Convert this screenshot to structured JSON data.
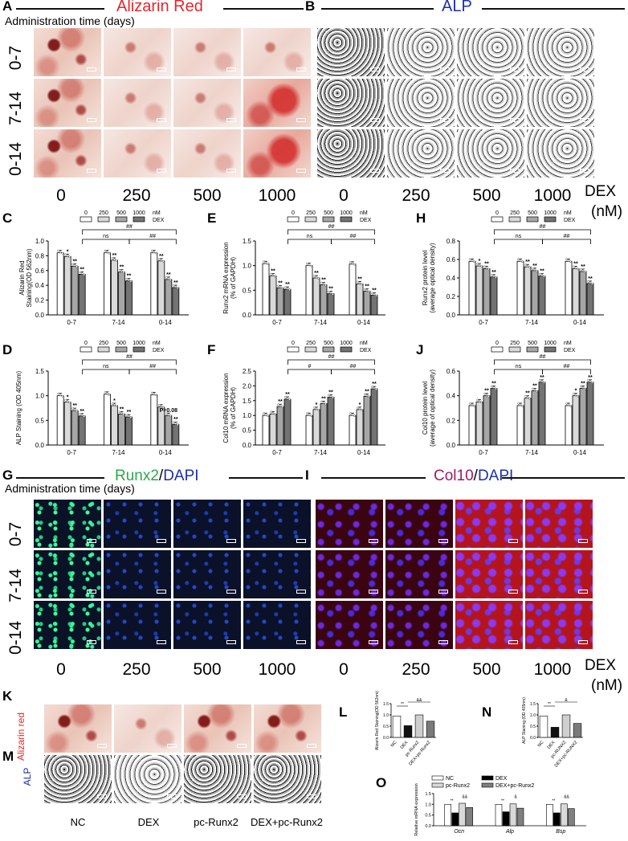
{
  "panels": {
    "A": {
      "label": "A",
      "title": "Alizarin Red",
      "subtitle": "Administration time (days)",
      "rows": [
        "0-7",
        "7-14",
        "0-14"
      ]
    },
    "B": {
      "label": "B",
      "title": "ALP"
    },
    "doses": [
      "0",
      "250",
      "500",
      "1000"
    ],
    "dex_unit": [
      "DEX",
      "(nM)"
    ],
    "G": {
      "label": "G",
      "title_a": "Runx2",
      "title_sep": "/",
      "title_b": "DAPI",
      "subtitle": "Administration time (days)",
      "rows": [
        "0-7",
        "7-14",
        "0-14"
      ]
    },
    "I": {
      "label": "I",
      "title_a": "Col10",
      "title_sep": "/",
      "title_b": "DAPI"
    },
    "K": {
      "label": "K",
      "row_label": "Alizarin red"
    },
    "M": {
      "label": "M",
      "row_label": "ALP"
    },
    "KM_groups": [
      "NC",
      "DEX",
      "pc-Runx2",
      "DEX+pc-Runx2"
    ],
    "colors": {
      "red_title": "#e8262b",
      "blue_title": "#1c2fa8",
      "green_title": "#2aa84a",
      "purple_title": "#9c1a6a"
    }
  },
  "chart_data": [
    {
      "id": "C",
      "type": "bar",
      "ylabel": "Alizarin Red Staining(OD 562nm)",
      "ylim": [
        0,
        1.0
      ],
      "yticks": [
        "0.0",
        "0.2",
        "0.4",
        "0.6",
        "0.8",
        "1.0"
      ],
      "categories": [
        "0-7",
        "7-14",
        "0-14"
      ],
      "series": [
        {
          "name": "0",
          "values": [
            0.84,
            0.84,
            0.84
          ]
        },
        {
          "name": "250",
          "values": [
            0.79,
            0.74,
            0.73
          ]
        },
        {
          "name": "500",
          "values": [
            0.66,
            0.58,
            0.48
          ]
        },
        {
          "name": "1000",
          "values": [
            0.55,
            0.46,
            0.37
          ]
        }
      ],
      "legend": [
        "0",
        "250",
        "500",
        "1000"
      ],
      "legend_unit": "nM",
      "legend_sub": "DEX",
      "sig": [
        "ns",
        "##"
      ],
      "stars": [
        [
          "",
          "*",
          "**",
          "**"
        ],
        [
          "",
          "**",
          "**",
          "**"
        ],
        [
          "",
          "**",
          "**",
          "**"
        ]
      ]
    },
    {
      "id": "D",
      "type": "bar",
      "ylabel": "ALP Staining (OD 405nm)",
      "ylim": [
        0,
        1.5
      ],
      "yticks": [
        "0.0",
        "0.5",
        "1.0",
        "1.5"
      ],
      "categories": [
        "0-7",
        "7-14",
        "0-14"
      ],
      "series": [
        {
          "name": "0",
          "values": [
            1.0,
            1.03,
            1.02
          ]
        },
        {
          "name": "250",
          "values": [
            0.87,
            0.8,
            0.77
          ]
        },
        {
          "name": "500",
          "values": [
            0.7,
            0.63,
            0.6
          ]
        },
        {
          "name": "1000",
          "values": [
            0.59,
            0.57,
            0.42
          ]
        }
      ],
      "legend": [
        "0",
        "250",
        "500",
        "1000"
      ],
      "legend_unit": "nM",
      "legend_sub": "DEX",
      "sig": [
        "ns",
        "##"
      ],
      "stars": [
        [
          "",
          "*",
          "**",
          "**"
        ],
        [
          "",
          "*",
          "**",
          "**"
        ],
        [
          "",
          "",
          "P=0.08",
          "**"
        ]
      ]
    },
    {
      "id": "E",
      "type": "bar",
      "ylabel": "Runx2 mRNA expression (% of GAPDH)",
      "ylim": [
        0,
        1.5
      ],
      "yticks": [
        "0.0",
        "0.5",
        "1.0",
        "1.5"
      ],
      "categories": [
        "0-7",
        "7-14",
        "0-14"
      ],
      "series": [
        {
          "name": "0",
          "values": [
            1.04,
            1.0,
            1.03
          ]
        },
        {
          "name": "250",
          "values": [
            0.79,
            0.75,
            0.63
          ]
        },
        {
          "name": "500",
          "values": [
            0.55,
            0.61,
            0.48
          ]
        },
        {
          "name": "1000",
          "values": [
            0.52,
            0.43,
            0.4
          ]
        }
      ],
      "legend": [
        "0",
        "250",
        "500",
        "1000"
      ],
      "legend_unit": "nM",
      "legend_sub": "DEX",
      "sig": [
        "ns",
        "##"
      ],
      "stars": [
        [
          "",
          "**",
          "**",
          "**"
        ],
        [
          "",
          "**",
          "**",
          "**"
        ],
        [
          "",
          "**",
          "**",
          "**"
        ]
      ]
    },
    {
      "id": "F",
      "type": "bar",
      "ylabel": "Col10 mRNA expression (% of GAPDH)",
      "ylim": [
        0,
        2.5
      ],
      "yticks": [
        "0.0",
        "0.5",
        "1.0",
        "1.5",
        "2.0",
        "2.5"
      ],
      "categories": [
        "0-7",
        "7-14",
        "0-14"
      ],
      "series": [
        {
          "name": "0",
          "values": [
            1.0,
            1.0,
            1.0
          ]
        },
        {
          "name": "250",
          "values": [
            1.05,
            1.2,
            1.2
          ]
        },
        {
          "name": "500",
          "values": [
            1.3,
            1.4,
            1.65
          ]
        },
        {
          "name": "1000",
          "values": [
            1.55,
            1.62,
            1.9
          ]
        }
      ],
      "legend": [
        "0",
        "250",
        "500",
        "1000"
      ],
      "legend_unit": "nM",
      "legend_sub": "DEX",
      "sig": [
        "#",
        "##"
      ],
      "stars": [
        [
          "",
          "",
          "**",
          "**"
        ],
        [
          "",
          "*",
          "**",
          "**"
        ],
        [
          "",
          "*",
          "**",
          "**"
        ]
      ]
    },
    {
      "id": "H",
      "type": "bar",
      "ylabel": "Runx2 protein level (average optical density)",
      "ylim": [
        0,
        0.8
      ],
      "yticks": [
        "0.0",
        "0.2",
        "0.4",
        "0.6",
        "0.8"
      ],
      "categories": [
        "0-7",
        "7-14",
        "0-14"
      ],
      "series": [
        {
          "name": "0",
          "values": [
            0.58,
            0.58,
            0.58
          ]
        },
        {
          "name": "250",
          "values": [
            0.53,
            0.52,
            0.5
          ]
        },
        {
          "name": "500",
          "values": [
            0.5,
            0.48,
            0.47
          ]
        },
        {
          "name": "1000",
          "values": [
            0.41,
            0.42,
            0.34
          ]
        }
      ],
      "legend": [
        "0",
        "250",
        "500",
        "1000"
      ],
      "legend_unit": "nM",
      "legend_sub": "DEX",
      "sig": [
        "ns",
        "##"
      ],
      "stars": [
        [
          "",
          "*",
          "**",
          "**"
        ],
        [
          "",
          "**",
          "**",
          "**"
        ],
        [
          "",
          "**",
          "**",
          "**"
        ]
      ]
    },
    {
      "id": "J",
      "type": "bar",
      "ylabel": "Col10 protein level (average of optical density)",
      "ylim": [
        0,
        0.6
      ],
      "yticks": [
        "0.0",
        "0.2",
        "0.4",
        "0.6"
      ],
      "categories": [
        "0-7",
        "7-14",
        "0-14"
      ],
      "series": [
        {
          "name": "0",
          "values": [
            0.32,
            0.32,
            0.32
          ]
        },
        {
          "name": "250",
          "values": [
            0.35,
            0.38,
            0.4
          ]
        },
        {
          "name": "500",
          "values": [
            0.4,
            0.44,
            0.46
          ]
        },
        {
          "name": "1000",
          "values": [
            0.46,
            0.51,
            0.51
          ]
        }
      ],
      "legend": [
        "0",
        "250",
        "500",
        "1000"
      ],
      "legend_unit": "nM",
      "legend_sub": "DEX",
      "sig": [
        "ns",
        "##"
      ],
      "stars": [
        [
          "",
          "",
          "**",
          "**"
        ],
        [
          "",
          "**",
          "**",
          "**"
        ],
        [
          "",
          "*",
          "**",
          "**"
        ]
      ]
    },
    {
      "id": "L",
      "type": "bar",
      "ylabel": "Alizarin Red Staining(OD 562nm)",
      "ylim": [
        0,
        1.5
      ],
      "yticks": [
        "0.0",
        "0.5",
        "1.0",
        "1.5"
      ],
      "categories": [
        "NC",
        "DEX",
        "pc-Runx2",
        "DEX+pc-Runx2"
      ],
      "values": [
        0.95,
        0.52,
        1.0,
        0.72
      ],
      "sig": [
        "**",
        "&&"
      ]
    },
    {
      "id": "N",
      "type": "bar",
      "ylabel": "ALP Staining (OD 405nm)",
      "ylim": [
        0,
        1.5
      ],
      "yticks": [
        "0.0",
        "0.5",
        "1.0",
        "1.5"
      ],
      "categories": [
        "NC",
        "DEX",
        "pc-RUNX2",
        "DEX+pc-RUNX2"
      ],
      "values": [
        0.95,
        0.45,
        1.0,
        0.62
      ],
      "sig": [
        "**",
        "&"
      ]
    },
    {
      "id": "O",
      "type": "bar",
      "ylabel": "Relative mRNA expression",
      "ylim": [
        0,
        1.5
      ],
      "yticks": [
        "0.0",
        "0.5",
        "1.0",
        "1.5"
      ],
      "categories": [
        "Ocn",
        "Alp",
        "Bsp"
      ],
      "series": [
        {
          "name": "NC",
          "values": [
            1.0,
            1.0,
            1.0
          ]
        },
        {
          "name": "DEX",
          "values": [
            0.6,
            0.65,
            0.6
          ]
        },
        {
          "name": "pc-Runx2",
          "values": [
            1.05,
            1.02,
            1.02
          ]
        },
        {
          "name": "DEX+pc-Runx2",
          "values": [
            0.85,
            0.82,
            0.8
          ]
        }
      ],
      "legend": [
        "NC",
        "DEX",
        "pc-Runx2",
        "DEX+pc-Runx2"
      ],
      "sig": [
        [
          "**",
          "&&"
        ],
        [
          "**",
          "&"
        ],
        [
          "**",
          "&&"
        ]
      ]
    }
  ]
}
